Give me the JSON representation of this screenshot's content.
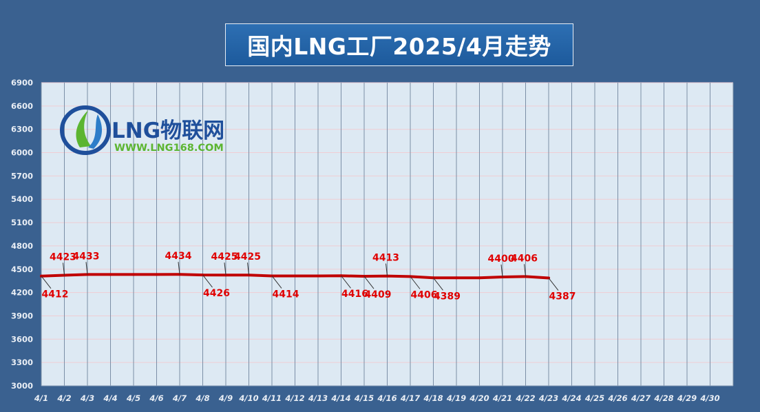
{
  "title": "国内LNG工厂2025/4月走势",
  "logo": {
    "brand": "LNG物联网",
    "url": "WWW.LNG168.COM"
  },
  "colors": {
    "background": "#3a6190",
    "plot": "#dde9f3",
    "line": "#c00000",
    "label": "#e00000"
  },
  "chart_data": {
    "type": "line",
    "title": "国内LNG工厂2025/4月走势",
    "xlabel": "",
    "ylabel": "",
    "ylim": [
      3000,
      6900
    ],
    "yticks": [
      3000,
      3300,
      3600,
      3900,
      4200,
      4500,
      4800,
      5100,
      5400,
      5700,
      6000,
      6300,
      6600,
      6900
    ],
    "categories": [
      "4/1",
      "4/2",
      "4/3",
      "4/4",
      "4/5",
      "4/6",
      "4/7",
      "4/8",
      "4/9",
      "4/10",
      "4/11",
      "4/12",
      "4/13",
      "4/14",
      "4/15",
      "4/16",
      "4/17",
      "4/18",
      "4/19",
      "4/20",
      "4/21",
      "4/22",
      "4/23",
      "4/24",
      "4/25",
      "4/26",
      "4/27",
      "4/28",
      "4/29",
      "4/30"
    ],
    "series": [
      {
        "values": [
          4412,
          4423,
          4433,
          4433,
          4433,
          4433,
          4434,
          4426,
          4425,
          4425,
          4414,
          4414,
          4414,
          4416,
          4409,
          4413,
          4406,
          4389,
          4389,
          4389,
          4400,
          4406,
          4387,
          null,
          null,
          null,
          null,
          null,
          null,
          null
        ]
      }
    ],
    "data_labels": [
      {
        "x": "4/1",
        "text": "4412",
        "pos": "below"
      },
      {
        "x": "4/2",
        "text": "4423",
        "pos": "above"
      },
      {
        "x": "4/3",
        "text": "4433",
        "pos": "above"
      },
      {
        "x": "4/7",
        "text": "4434",
        "pos": "above"
      },
      {
        "x": "4/8",
        "text": "4426",
        "pos": "below"
      },
      {
        "x": "4/9",
        "text": "4425",
        "pos": "above"
      },
      {
        "x": "4/10",
        "text": "4425",
        "pos": "above"
      },
      {
        "x": "4/11",
        "text": "4414",
        "pos": "below"
      },
      {
        "x": "4/14",
        "text": "4416",
        "pos": "below"
      },
      {
        "x": "4/15",
        "text": "4409",
        "pos": "below"
      },
      {
        "x": "4/16",
        "text": "4413",
        "pos": "above"
      },
      {
        "x": "4/17",
        "text": "4406",
        "pos": "below"
      },
      {
        "x": "4/18",
        "text": "4389",
        "pos": "below"
      },
      {
        "x": "4/21",
        "text": "4400",
        "pos": "above"
      },
      {
        "x": "4/22",
        "text": "4406",
        "pos": "above"
      },
      {
        "x": "4/23",
        "text": "4387",
        "pos": "below"
      }
    ],
    "grid": true,
    "legend": "none"
  }
}
